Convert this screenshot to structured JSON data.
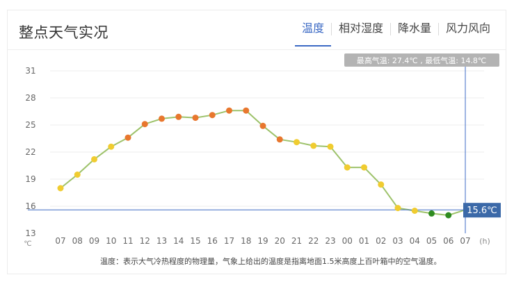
{
  "header": {
    "title": "整点天气实况",
    "tabs": [
      {
        "label": "温度",
        "active": true
      },
      {
        "label": "相对湿度",
        "active": false
      },
      {
        "label": "降水量",
        "active": false
      },
      {
        "label": "风力风向",
        "active": false
      }
    ]
  },
  "tooltip": {
    "summary": "最高气温: 27.4℃ , 最低气温: 14.8℃",
    "current_value": "15.6℃"
  },
  "footnote": "温度：表示大气冷热程度的物理量，气象上给出的温度是指离地面1.5米高度上百叶箱中的空气温度。",
  "colors": {
    "line": "#9dc26a",
    "high": "#e8772e",
    "mid": "#f0cc30",
    "low": "#2e8b1f",
    "cursor": "#3b69c4",
    "grid": "#ededed"
  },
  "chart_data": {
    "type": "line",
    "unit_label": "℃",
    "x_unit_label": "(h)",
    "ylim": [
      13,
      31
    ],
    "yticks": [
      13,
      16,
      19,
      22,
      25,
      28,
      31
    ],
    "categories": [
      "07",
      "08",
      "09",
      "10",
      "11",
      "12",
      "13",
      "14",
      "15",
      "16",
      "17",
      "18",
      "19",
      "20",
      "21",
      "22",
      "23",
      "00",
      "01",
      "02",
      "03",
      "04",
      "05",
      "06",
      "07"
    ],
    "values": [
      18.0,
      19.5,
      21.2,
      22.6,
      23.6,
      25.1,
      25.7,
      25.9,
      25.8,
      26.1,
      26.6,
      26.6,
      24.9,
      23.4,
      23.1,
      22.7,
      22.6,
      20.3,
      20.3,
      18.4,
      15.8,
      15.5,
      15.2,
      15.0,
      15.6
    ],
    "marker_levels": [
      "mid",
      "mid",
      "mid",
      "mid",
      "high",
      "high",
      "high",
      "high",
      "high",
      "high",
      "high",
      "high",
      "high",
      "high",
      "mid",
      "mid",
      "mid",
      "mid",
      "mid",
      "mid",
      "mid",
      "mid",
      "low",
      "low"
    ],
    "hover_index": 24,
    "grid": true
  }
}
